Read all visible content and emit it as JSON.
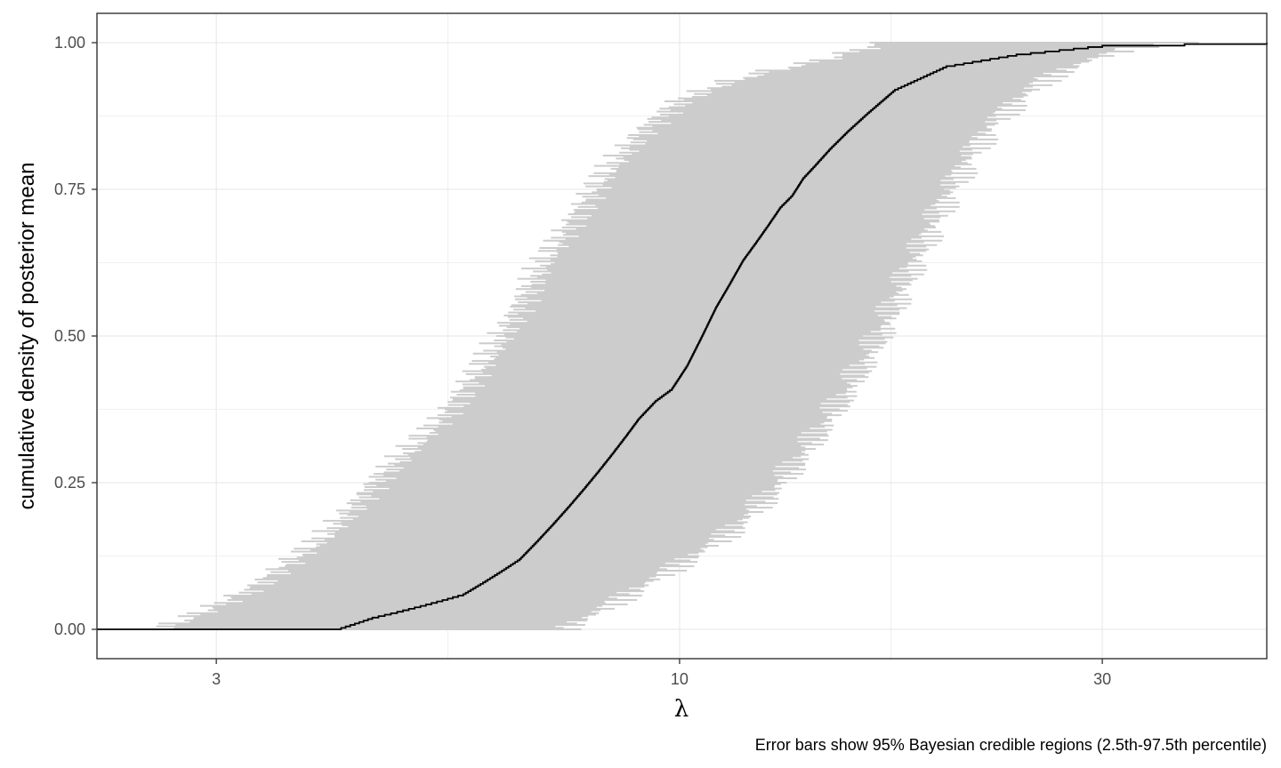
{
  "chart_data": {
    "type": "line",
    "xscale": "log",
    "xlabel": "λ",
    "ylabel": "cumulative density of posterior mean",
    "caption": "Error bars show 95% Bayesian credible regions (2.5th-97.5th percentile)",
    "xlim": [
      2.2,
      46
    ],
    "ylim": [
      -0.05,
      1.05
    ],
    "x_ticks": [
      3,
      10,
      30
    ],
    "x_tick_labels": [
      "3",
      "10",
      "30"
    ],
    "y_ticks": [
      0,
      0.25,
      0.5,
      0.75,
      1
    ],
    "y_tick_labels": [
      "0.00",
      "0.25",
      "0.50",
      "0.75",
      "1.00"
    ],
    "grid": true,
    "legend": "none",
    "colors": {
      "line": "#000000",
      "band": "#cccccc",
      "grid": "#ebebeb",
      "border": "#333333"
    },
    "series": [
      {
        "role": "ecdf",
        "x": [
          2.2,
          4.1,
          4.3,
          4.5,
          4.8,
          5.1,
          5.4,
          5.7,
          6.0,
          6.3,
          6.6,
          6.9,
          7.2,
          7.5,
          7.8,
          8.1,
          8.4,
          8.7,
          9.0,
          9.4,
          9.8,
          10.2,
          10.6,
          11.0,
          11.4,
          11.8,
          12.2,
          12.6,
          13.0,
          13.4,
          13.8,
          14.2,
          14.8,
          15.5,
          16.3,
          17.5,
          20.0,
          24.0,
          30.0,
          46.0
        ],
        "y": [
          0.0,
          0.0,
          0.01,
          0.02,
          0.03,
          0.04,
          0.05,
          0.06,
          0.08,
          0.1,
          0.12,
          0.15,
          0.18,
          0.21,
          0.24,
          0.27,
          0.3,
          0.33,
          0.36,
          0.39,
          0.41,
          0.45,
          0.5,
          0.55,
          0.59,
          0.63,
          0.66,
          0.69,
          0.72,
          0.74,
          0.77,
          0.79,
          0.82,
          0.85,
          0.88,
          0.92,
          0.96,
          0.98,
          0.995,
          1.0
        ]
      },
      {
        "role": "credible-lower",
        "x": [
          2.6,
          2.8,
          3.0,
          3.3,
          3.6,
          4.0,
          4.3,
          4.6,
          5.0,
          5.4,
          5.8,
          6.2,
          6.6,
          7.0,
          7.6,
          8.3,
          9.1,
          10.0,
          11.2,
          12.5,
          14.5,
          17.0
        ],
        "y": [
          0.0,
          0.02,
          0.04,
          0.07,
          0.11,
          0.16,
          0.21,
          0.26,
          0.31,
          0.36,
          0.42,
          0.48,
          0.55,
          0.62,
          0.7,
          0.78,
          0.85,
          0.9,
          0.93,
          0.95,
          0.97,
          1.0
        ]
      },
      {
        "role": "credible-upper",
        "x": [
          7.4,
          8.1,
          9.0,
          10.0,
          11.3,
          12.3,
          13.2,
          14.0,
          14.8,
          15.6,
          16.3,
          17.0,
          17.6,
          18.2,
          18.9,
          19.6,
          20.4,
          21.3,
          22.5,
          24.0,
          26.0,
          29.0,
          32.0,
          37.0
        ],
        "y": [
          0.0,
          0.03,
          0.07,
          0.11,
          0.16,
          0.21,
          0.26,
          0.31,
          0.36,
          0.41,
          0.46,
          0.51,
          0.56,
          0.61,
          0.66,
          0.71,
          0.76,
          0.81,
          0.86,
          0.9,
          0.94,
          0.97,
          0.99,
          1.0
        ]
      }
    ]
  }
}
